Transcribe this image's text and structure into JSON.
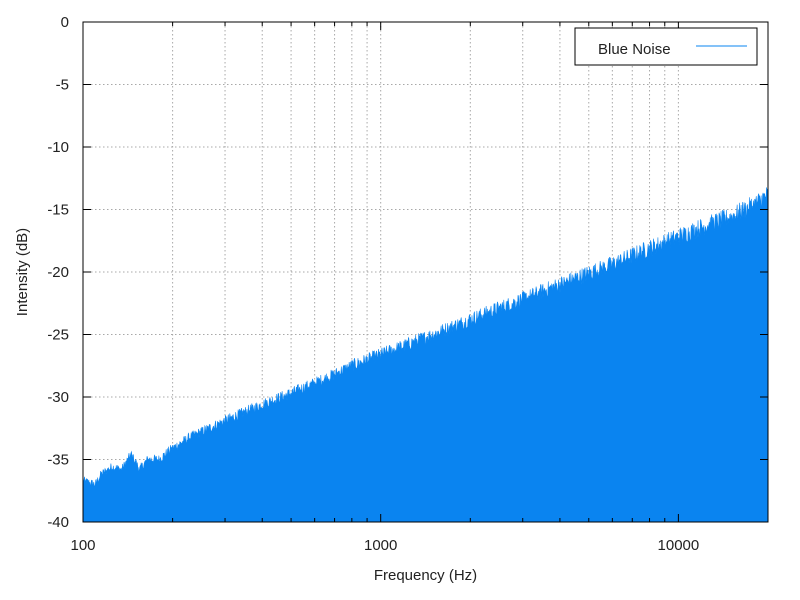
{
  "chart_data": {
    "type": "area",
    "title": "",
    "xlabel": "Frequency (Hz)",
    "ylabel": "Intensity (dB)",
    "x_scale": "log",
    "xlim": [
      100,
      20000
    ],
    "ylim": [
      -40,
      0
    ],
    "x_ticks": [
      "100",
      "1000",
      "10000"
    ],
    "y_ticks": [
      "0",
      "-5",
      "-10",
      "-15",
      "-20",
      "-25",
      "-30",
      "-35",
      "-40"
    ],
    "grid": true,
    "legend_position": "top-right",
    "series": [
      {
        "name": "Blue Noise",
        "color": "#0a84f0",
        "points": [
          [
            100,
            -36.7
          ],
          [
            110,
            -37.0
          ],
          [
            115,
            -36.2
          ],
          [
            125,
            -35.6
          ],
          [
            135,
            -35.8
          ],
          [
            145,
            -34.6
          ],
          [
            155,
            -35.8
          ],
          [
            165,
            -35.0
          ],
          [
            180,
            -35.0
          ],
          [
            200,
            -34.1
          ],
          [
            230,
            -33.2
          ],
          [
            260,
            -32.6
          ],
          [
            300,
            -31.9
          ],
          [
            350,
            -31.2
          ],
          [
            400,
            -30.6
          ],
          [
            500,
            -29.7
          ],
          [
            600,
            -28.9
          ],
          [
            700,
            -28.2
          ],
          [
            800,
            -27.5
          ],
          [
            1000,
            -26.6
          ],
          [
            1200,
            -25.9
          ],
          [
            1500,
            -25.0
          ],
          [
            2000,
            -23.8
          ],
          [
            2500,
            -22.9
          ],
          [
            3000,
            -22.2
          ],
          [
            4000,
            -21.0
          ],
          [
            5000,
            -20.1
          ],
          [
            6000,
            -19.4
          ],
          [
            8000,
            -18.1
          ],
          [
            10000,
            -17.2
          ],
          [
            12000,
            -16.4
          ],
          [
            15000,
            -15.6
          ],
          [
            18000,
            -14.6
          ],
          [
            20000,
            -13.8
          ]
        ]
      }
    ]
  }
}
